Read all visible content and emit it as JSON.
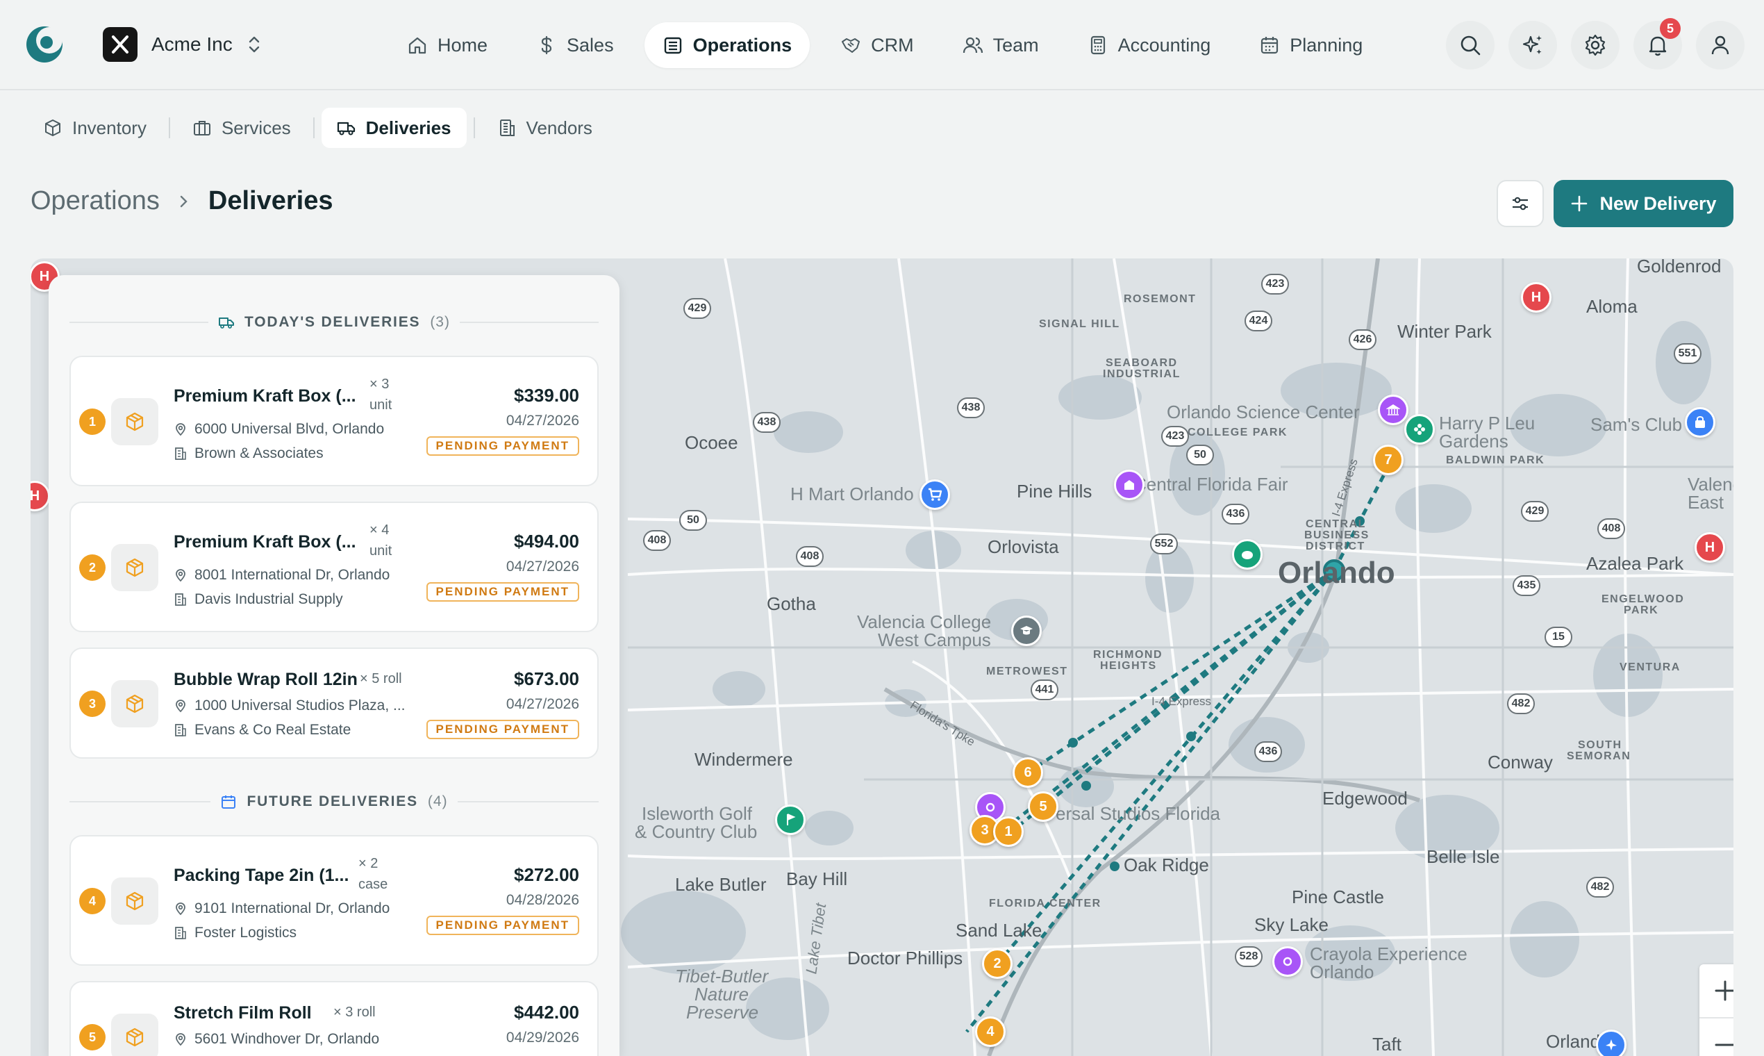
{
  "company": {
    "name": "Acme Inc"
  },
  "nav": {
    "items": [
      {
        "label": "Home"
      },
      {
        "label": "Sales"
      },
      {
        "label": "Operations"
      },
      {
        "label": "CRM"
      },
      {
        "label": "Team"
      },
      {
        "label": "Accounting"
      },
      {
        "label": "Planning"
      }
    ],
    "active": "Operations",
    "notification_count": "5"
  },
  "subnav": {
    "items": [
      {
        "label": "Inventory"
      },
      {
        "label": "Services"
      },
      {
        "label": "Deliveries"
      },
      {
        "label": "Vendors"
      }
    ],
    "active": "Deliveries"
  },
  "header": {
    "parent": "Operations",
    "current": "Deliveries",
    "new_button": "New Delivery"
  },
  "panel": {
    "today": {
      "title": "TODAY'S DELIVERIES",
      "count": "(3)"
    },
    "future": {
      "title": "FUTURE DELIVERIES",
      "count": "(4)"
    },
    "deliveries": [
      {
        "num": "1",
        "name": "Premium Kraft Box (...",
        "qty": "× 3",
        "unit": "unit",
        "address": "6000 Universal Blvd, Orlando",
        "customer": "Brown & Associates",
        "price": "$339.00",
        "date": "04/27/2026",
        "status": "PENDING PAYMENT"
      },
      {
        "num": "2",
        "name": "Premium Kraft Box (...",
        "qty": "× 4",
        "unit": "unit",
        "address": "8001 International Dr, Orlando",
        "customer": "Davis Industrial Supply",
        "price": "$494.00",
        "date": "04/27/2026",
        "status": "PENDING PAYMENT"
      },
      {
        "num": "3",
        "name": "Bubble Wrap Roll 12in",
        "qty": "× 5 roll",
        "unit": "",
        "address": "1000 Universal Studios Plaza, ...",
        "customer": "Evans & Co Real Estate",
        "price": "$673.00",
        "date": "04/27/2026",
        "status": "PENDING PAYMENT"
      },
      {
        "num": "4",
        "name": "Packing Tape 2in (1...",
        "qty": "× 2",
        "unit": "case",
        "address": "9101 International Dr, Orlando",
        "customer": "Foster Logistics",
        "price": "$272.00",
        "date": "04/28/2026",
        "status": "PENDING PAYMENT"
      },
      {
        "num": "5",
        "name": "Stretch Film Roll",
        "qty": "× 3 roll",
        "unit": "",
        "address": "5601 Windhover Dr, Orlando",
        "customer": "",
        "price": "$442.00",
        "date": "04/29/2026",
        "status": ""
      }
    ]
  },
  "map": {
    "labels": {
      "goldenrod": "Goldenrod",
      "aloma": "Aloma",
      "winter_park": "Winter Park",
      "rosemont": "ROSEMONT",
      "signal_hill": "SIGNAL HILL",
      "seaboard": "SEABOARD",
      "industrial": "INDUSTRIAL",
      "orlando_science": "Orlando Science Center",
      "college_park": "COLLEGE PARK",
      "harry": "Harry P Leu",
      "gardens": "Gardens",
      "baldwin": "BALDWIN PARK",
      "sams": "Sam's Club",
      "ocoee": "Ocoee",
      "hmart": "H Mart Orlando",
      "pine_hills": "Pine Hills",
      "cfair": "Central Florida Fair",
      "valencia_east": "Valencia",
      "east": "East",
      "central": "CENTRAL",
      "business": "BUSINESS",
      "district": "DISTRICT",
      "orlovista": "Orlovista",
      "orlando": "Orlando",
      "azalea": "Azalea Park",
      "engelwood": "ENGELWOOD",
      "park": "PARK",
      "gotha": "Gotha",
      "valencia_college": "Valencia College",
      "west_campus": "West Campus",
      "richmond": "RICHMOND",
      "heights": "HEIGHTS",
      "metrowest": "METROWEST",
      "ventura": "VENTURA",
      "turnpike": "Florida's Tpke",
      "express": "I-4 Express",
      "express2": "I-4 Express",
      "windermere": "Windermere",
      "south": "SOUTH",
      "semoran": "SEMORAN",
      "conway": "Conway",
      "isleworth": "Isleworth Golf",
      "country_club": "& Country Club",
      "universal": "ersal Studios Florida",
      "edgewood": "Edgewood",
      "oak_ridge": "Oak Ridge",
      "belle_isle": "Belle Isle",
      "lake_butler": "Lake Butler",
      "bay_hill": "Bay Hill",
      "florida_center": "FLORIDA CENTER",
      "pine_castle": "Pine Castle",
      "sand_lake": "Sand Lake",
      "sky_lake": "Sky Lake",
      "doctor_phillips": "Doctor Phillips",
      "crayola": "Crayola Experience",
      "crayola2": "Orlando",
      "tibet": "Tibet-Butler",
      "nature": "Nature",
      "preserve": "Preserve",
      "lake_tibet": "Lake Tibet",
      "taft": "Taft",
      "orlando_s": "Orlando"
    },
    "shields": [
      "423",
      "424",
      "426",
      "551",
      "429",
      "438",
      "438",
      "423",
      "50",
      "50",
      "436",
      "429",
      "408",
      "408",
      "408",
      "552",
      "435",
      "15",
      "441",
      "482",
      "436",
      "528",
      "482"
    ],
    "route_markers": [
      "7",
      "6",
      "5",
      "3",
      "1",
      "2",
      "4"
    ]
  }
}
